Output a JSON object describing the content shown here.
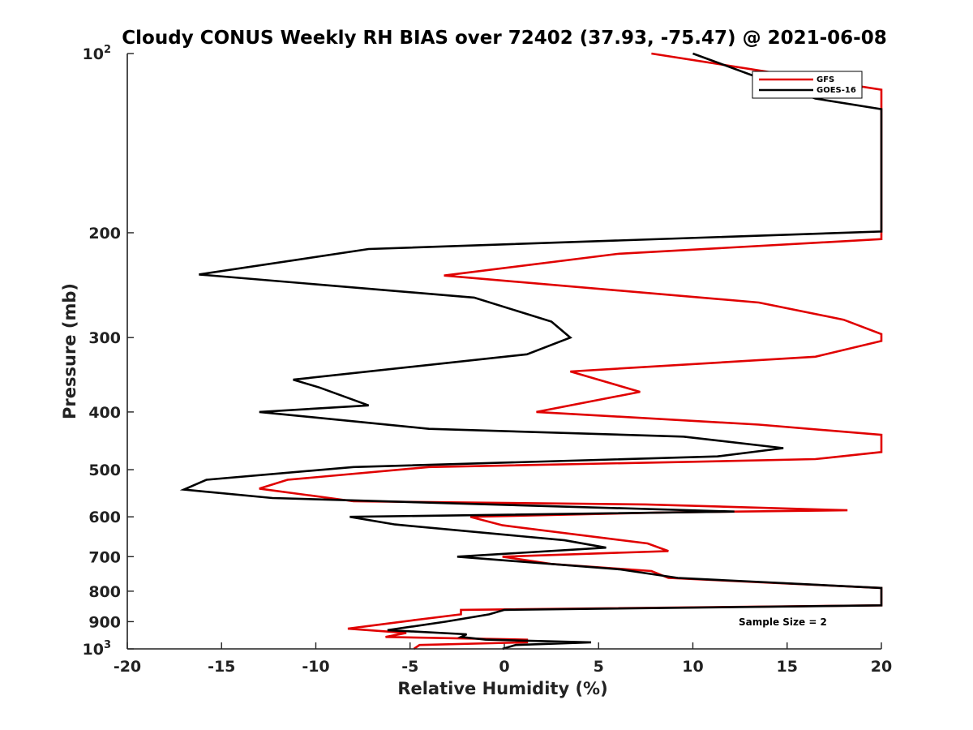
{
  "chart_data": {
    "type": "line",
    "title": "Cloudy CONUS Weekly RH BIAS over 72402 (37.93, -75.47) @ 2021-06-08",
    "xlabel": "Relative Humidity (%)",
    "ylabel": "Pressure (mb)",
    "xlim": [
      -20,
      20
    ],
    "ylim": [
      100,
      1000
    ],
    "y_scale": "log",
    "y_reversed": true,
    "x_ticks": [
      "-20",
      "-15",
      "-10",
      "-5",
      "0",
      "5",
      "10",
      "15",
      "20"
    ],
    "y_ticks": [
      {
        "base": "10",
        "exp": "2",
        "value": 100
      },
      {
        "label": "200",
        "value": 200
      },
      {
        "label": "300",
        "value": 300
      },
      {
        "label": "400",
        "value": 400
      },
      {
        "label": "500",
        "value": 500
      },
      {
        "label": "600",
        "value": 600
      },
      {
        "label": "700",
        "value": 700
      },
      {
        "label": "800",
        "value": 800
      },
      {
        "label": "900",
        "value": 900
      },
      {
        "base": "10",
        "exp": "3",
        "value": 1000
      }
    ],
    "grid": false,
    "legend_position": "top-right",
    "series": [
      {
        "name": "GFS",
        "color": "#e00000",
        "points": [
          [
            7.8,
            100
          ],
          [
            20,
            115
          ],
          [
            20,
            205
          ],
          [
            6,
            217
          ],
          [
            -3.2,
            236
          ],
          [
            13.5,
            262
          ],
          [
            18,
            280
          ],
          [
            20,
            296
          ],
          [
            20,
            304
          ],
          [
            16.5,
            323
          ],
          [
            3.5,
            342
          ],
          [
            7.2,
            370
          ],
          [
            1.7,
            400
          ],
          [
            13.5,
            420
          ],
          [
            20,
            437
          ],
          [
            20,
            467
          ],
          [
            16.5,
            480
          ],
          [
            10,
            485
          ],
          [
            -4,
            495
          ],
          [
            -11.5,
            520
          ],
          [
            -13,
            538
          ],
          [
            -8,
            565
          ],
          [
            7.5,
            572
          ],
          [
            18.2,
            585
          ],
          [
            8.5,
            590
          ],
          [
            -1.8,
            600
          ],
          [
            -0.1,
            620
          ],
          [
            7.6,
            665
          ],
          [
            8.7,
            685
          ],
          [
            -0.1,
            700
          ],
          [
            2.5,
            720
          ],
          [
            7.8,
            740
          ],
          [
            8.7,
            760
          ],
          [
            20,
            790
          ],
          [
            20,
            845
          ],
          [
            -2.3,
            860
          ],
          [
            -2.3,
            875
          ],
          [
            -4.8,
            895
          ],
          [
            -8.3,
            925
          ],
          [
            -5.2,
            940
          ],
          [
            -6.3,
            955
          ],
          [
            1.2,
            965
          ],
          [
            1.2,
            975
          ],
          [
            -4.5,
            985
          ],
          [
            -4.8,
            1000
          ]
        ]
      },
      {
        "name": "GOES-16",
        "color": "#000000",
        "points": [
          [
            10,
            100
          ],
          [
            16.5,
            119
          ],
          [
            20,
            124
          ],
          [
            20,
            199
          ],
          [
            -7.2,
            213
          ],
          [
            -16.2,
            235
          ],
          [
            -1.6,
            257
          ],
          [
            2.5,
            282
          ],
          [
            3.5,
            300
          ],
          [
            1.2,
            320
          ],
          [
            -11.2,
            353
          ],
          [
            -9.8,
            364
          ],
          [
            -7.2,
            390
          ],
          [
            -13,
            400
          ],
          [
            -4,
            427
          ],
          [
            9.5,
            440
          ],
          [
            14.8,
            460
          ],
          [
            11.3,
            475
          ],
          [
            -8,
            495
          ],
          [
            -15.8,
            520
          ],
          [
            -17,
            540
          ],
          [
            -12.3,
            558
          ],
          [
            12.2,
            588
          ],
          [
            -8.2,
            600
          ],
          [
            -5.8,
            618
          ],
          [
            3.2,
            657
          ],
          [
            5.4,
            676
          ],
          [
            -2.5,
            700
          ],
          [
            6.1,
            735
          ],
          [
            9.2,
            760
          ],
          [
            20,
            790
          ],
          [
            20,
            845
          ],
          [
            0,
            860
          ],
          [
            -0.8,
            875
          ],
          [
            -3.1,
            900
          ],
          [
            -6.2,
            930
          ],
          [
            -2,
            945
          ],
          [
            -2.3,
            955
          ],
          [
            -1,
            965
          ],
          [
            4.6,
            975
          ],
          [
            0.6,
            985
          ],
          [
            -0.1,
            1000
          ]
        ]
      }
    ],
    "annotation": "Sample Size = 2"
  }
}
